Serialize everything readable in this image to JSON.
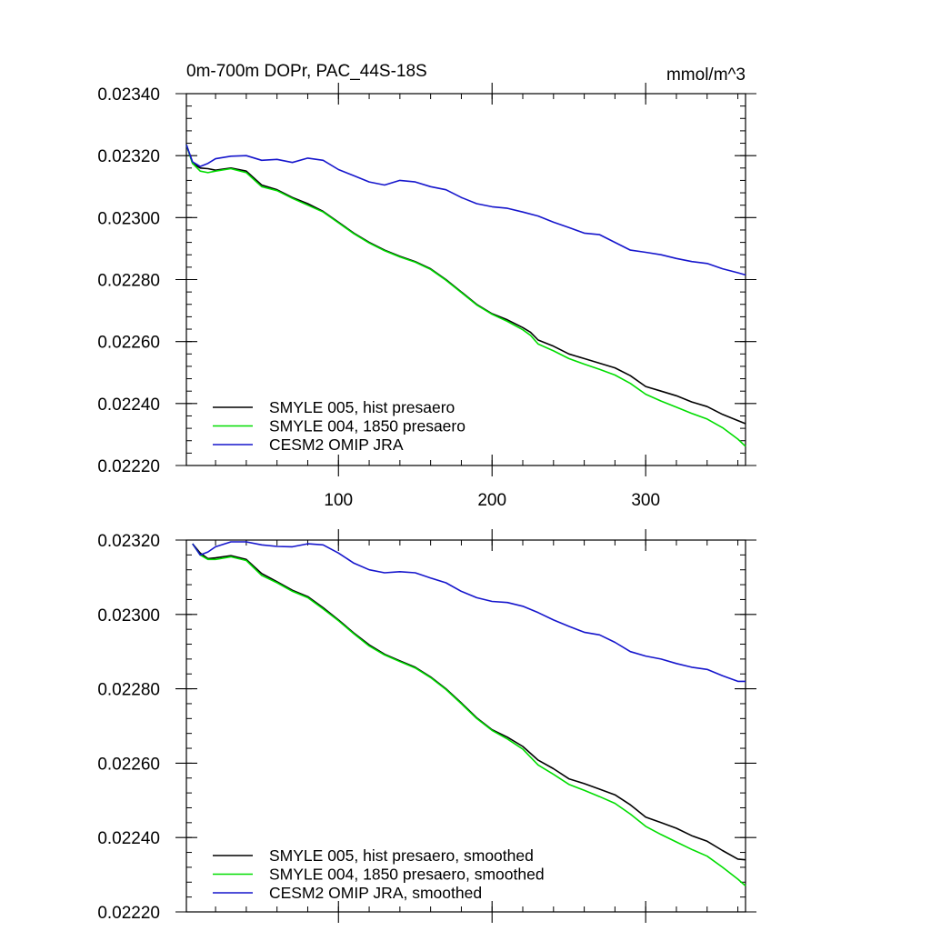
{
  "chart_data": [
    {
      "type": "line",
      "title": "0m-700m DOPr, PAC_44S-18S",
      "units": "mmol/m^3",
      "xlim": [
        1,
        365
      ],
      "ylim": [
        0.0222,
        0.0234
      ],
      "x_ticks": [
        100,
        200,
        300
      ],
      "x_tick_labels": [
        "100",
        "200",
        "300"
      ],
      "y_ticks": [
        0.0222,
        0.0224,
        0.0226,
        0.0228,
        0.023,
        0.0232,
        0.0234
      ],
      "y_tick_labels": [
        "0.02220",
        "0.02240",
        "0.02260",
        "0.02280",
        "0.02300",
        "0.02320",
        "0.02340"
      ],
      "grid": false,
      "legend_position": "bottom-left",
      "series": [
        {
          "name": "SMYLE 005, hist presaero",
          "color": "#000000",
          "points": [
            [
              1,
              0.023235
            ],
            [
              5,
              0.023175
            ],
            [
              10,
              0.02316
            ],
            [
              15,
              0.023158
            ],
            [
              20,
              0.023153
            ],
            [
              30,
              0.02316
            ],
            [
              40,
              0.02315
            ],
            [
              50,
              0.023105
            ],
            [
              60,
              0.02309
            ],
            [
              70,
              0.023065
            ],
            [
              80,
              0.023045
            ],
            [
              90,
              0.02302
            ],
            [
              100,
              0.022985
            ],
            [
              110,
              0.02295
            ],
            [
              120,
              0.02292
            ],
            [
              130,
              0.022895
            ],
            [
              140,
              0.022875
            ],
            [
              150,
              0.022858
            ],
            [
              160,
              0.022835
            ],
            [
              170,
              0.0228
            ],
            [
              180,
              0.02276
            ],
            [
              190,
              0.02272
            ],
            [
              200,
              0.02269
            ],
            [
              210,
              0.02267
            ],
            [
              220,
              0.022645
            ],
            [
              225,
              0.02263
            ],
            [
              230,
              0.022605
            ],
            [
              240,
              0.022585
            ],
            [
              250,
              0.02256
            ],
            [
              260,
              0.022545
            ],
            [
              270,
              0.02253
            ],
            [
              280,
              0.022515
            ],
            [
              290,
              0.02249
            ],
            [
              300,
              0.022455
            ],
            [
              310,
              0.02244
            ],
            [
              320,
              0.022425
            ],
            [
              330,
              0.022405
            ],
            [
              340,
              0.02239
            ],
            [
              350,
              0.022365
            ],
            [
              360,
              0.022345
            ],
            [
              365,
              0.022335
            ]
          ]
        },
        {
          "name": "SMYLE 004, 1850 presaero",
          "color": "#00dd00",
          "points": [
            [
              1,
              0.023235
            ],
            [
              5,
              0.023175
            ],
            [
              10,
              0.02315
            ],
            [
              15,
              0.023145
            ],
            [
              20,
              0.02315
            ],
            [
              30,
              0.023158
            ],
            [
              40,
              0.023145
            ],
            [
              50,
              0.0231
            ],
            [
              60,
              0.023087
            ],
            [
              70,
              0.023062
            ],
            [
              80,
              0.02304
            ],
            [
              90,
              0.023018
            ],
            [
              100,
              0.022983
            ],
            [
              110,
              0.022948
            ],
            [
              120,
              0.022918
            ],
            [
              130,
              0.022893
            ],
            [
              140,
              0.022873
            ],
            [
              150,
              0.022856
            ],
            [
              160,
              0.022833
            ],
            [
              170,
              0.022798
            ],
            [
              180,
              0.022758
            ],
            [
              190,
              0.022718
            ],
            [
              200,
              0.022688
            ],
            [
              210,
              0.022665
            ],
            [
              220,
              0.022638
            ],
            [
              225,
              0.02262
            ],
            [
              230,
              0.022592
            ],
            [
              240,
              0.02257
            ],
            [
              250,
              0.022545
            ],
            [
              260,
              0.022527
            ],
            [
              270,
              0.02251
            ],
            [
              280,
              0.022492
            ],
            [
              290,
              0.022465
            ],
            [
              300,
              0.02243
            ],
            [
              310,
              0.022408
            ],
            [
              320,
              0.022388
            ],
            [
              330,
              0.022368
            ],
            [
              340,
              0.02235
            ],
            [
              350,
              0.022322
            ],
            [
              360,
              0.022285
            ],
            [
              365,
              0.022262
            ]
          ]
        },
        {
          "name": "CESM2 OMIP JRA",
          "color": "#1515cc",
          "points": [
            [
              1,
              0.023235
            ],
            [
              5,
              0.02318
            ],
            [
              10,
              0.023165
            ],
            [
              15,
              0.023175
            ],
            [
              20,
              0.02319
            ],
            [
              30,
              0.023198
            ],
            [
              40,
              0.0232
            ],
            [
              50,
              0.023185
            ],
            [
              60,
              0.023188
            ],
            [
              70,
              0.023178
            ],
            [
              80,
              0.023192
            ],
            [
              90,
              0.023185
            ],
            [
              100,
              0.023155
            ],
            [
              110,
              0.023135
            ],
            [
              120,
              0.023115
            ],
            [
              130,
              0.023105
            ],
            [
              140,
              0.02312
            ],
            [
              150,
              0.023115
            ],
            [
              160,
              0.0231
            ],
            [
              170,
              0.02309
            ],
            [
              180,
              0.023065
            ],
            [
              190,
              0.023045
            ],
            [
              200,
              0.023035
            ],
            [
              210,
              0.02303
            ],
            [
              220,
              0.023018
            ],
            [
              230,
              0.023005
            ],
            [
              240,
              0.022985
            ],
            [
              250,
              0.022968
            ],
            [
              260,
              0.02295
            ],
            [
              270,
              0.022945
            ],
            [
              280,
              0.02292
            ],
            [
              290,
              0.022895
            ],
            [
              300,
              0.022888
            ],
            [
              310,
              0.02288
            ],
            [
              320,
              0.022868
            ],
            [
              330,
              0.022858
            ],
            [
              340,
              0.022852
            ],
            [
              350,
              0.022835
            ],
            [
              360,
              0.022822
            ],
            [
              365,
              0.022815
            ]
          ]
        }
      ]
    },
    {
      "type": "line",
      "title": "",
      "xlim": [
        1,
        365
      ],
      "ylim": [
        0.0222,
        0.0232
      ],
      "x_ticks": [
        100,
        200,
        300
      ],
      "y_ticks": [
        0.0222,
        0.0224,
        0.0226,
        0.0228,
        0.023,
        0.0232
      ],
      "y_tick_labels": [
        "0.02220",
        "0.02240",
        "0.02260",
        "0.02280",
        "0.02300",
        "0.02320"
      ],
      "grid": false,
      "legend_position": "bottom-left",
      "series": [
        {
          "name": "SMYLE 005, hist presaero, smoothed",
          "color": "#000000",
          "points": [
            [
              5,
              0.02319
            ],
            [
              10,
              0.023165
            ],
            [
              15,
              0.02315
            ],
            [
              20,
              0.023152
            ],
            [
              30,
              0.023158
            ],
            [
              40,
              0.023148
            ],
            [
              50,
              0.02311
            ],
            [
              60,
              0.023088
            ],
            [
              70,
              0.023065
            ],
            [
              80,
              0.023048
            ],
            [
              90,
              0.023018
            ],
            [
              100,
              0.022985
            ],
            [
              110,
              0.02295
            ],
            [
              120,
              0.022918
            ],
            [
              130,
              0.022893
            ],
            [
              140,
              0.022875
            ],
            [
              150,
              0.022858
            ],
            [
              160,
              0.022832
            ],
            [
              170,
              0.0228
            ],
            [
              180,
              0.022762
            ],
            [
              190,
              0.022722
            ],
            [
              200,
              0.02269
            ],
            [
              210,
              0.02267
            ],
            [
              220,
              0.022645
            ],
            [
              230,
              0.022608
            ],
            [
              240,
              0.022585
            ],
            [
              250,
              0.022558
            ],
            [
              260,
              0.022545
            ],
            [
              270,
              0.02253
            ],
            [
              280,
              0.022515
            ],
            [
              290,
              0.022488
            ],
            [
              300,
              0.022455
            ],
            [
              310,
              0.02244
            ],
            [
              320,
              0.022425
            ],
            [
              330,
              0.022405
            ],
            [
              340,
              0.02239
            ],
            [
              350,
              0.022365
            ],
            [
              360,
              0.022342
            ],
            [
              365,
              0.02234
            ]
          ]
        },
        {
          "name": "SMYLE 004, 1850 presaero, smoothed",
          "color": "#00dd00",
          "points": [
            [
              5,
              0.02319
            ],
            [
              10,
              0.02316
            ],
            [
              15,
              0.023148
            ],
            [
              20,
              0.023148
            ],
            [
              30,
              0.023155
            ],
            [
              40,
              0.023145
            ],
            [
              50,
              0.023105
            ],
            [
              60,
              0.023085
            ],
            [
              70,
              0.023062
            ],
            [
              80,
              0.023045
            ],
            [
              90,
              0.023015
            ],
            [
              100,
              0.022983
            ],
            [
              110,
              0.022948
            ],
            [
              120,
              0.022915
            ],
            [
              130,
              0.022891
            ],
            [
              140,
              0.022873
            ],
            [
              150,
              0.022856
            ],
            [
              160,
              0.02283
            ],
            [
              170,
              0.022798
            ],
            [
              180,
              0.02276
            ],
            [
              190,
              0.02272
            ],
            [
              200,
              0.022688
            ],
            [
              210,
              0.022665
            ],
            [
              220,
              0.022638
            ],
            [
              230,
              0.022595
            ],
            [
              240,
              0.02257
            ],
            [
              250,
              0.022543
            ],
            [
              260,
              0.022527
            ],
            [
              270,
              0.02251
            ],
            [
              280,
              0.022492
            ],
            [
              290,
              0.022463
            ],
            [
              300,
              0.02243
            ],
            [
              310,
              0.022408
            ],
            [
              320,
              0.022388
            ],
            [
              330,
              0.022368
            ],
            [
              340,
              0.02235
            ],
            [
              350,
              0.02232
            ],
            [
              360,
              0.022288
            ],
            [
              365,
              0.02227
            ]
          ]
        },
        {
          "name": "CESM2 OMIP JRA, smoothed",
          "color": "#1515cc",
          "points": [
            [
              5,
              0.02319
            ],
            [
              10,
              0.02316
            ],
            [
              15,
              0.023168
            ],
            [
              20,
              0.023182
            ],
            [
              30,
              0.023195
            ],
            [
              40,
              0.023195
            ],
            [
              50,
              0.023187
            ],
            [
              60,
              0.023183
            ],
            [
              70,
              0.023182
            ],
            [
              80,
              0.02319
            ],
            [
              90,
              0.023187
            ],
            [
              100,
              0.023165
            ],
            [
              110,
              0.023138
            ],
            [
              120,
              0.02312
            ],
            [
              130,
              0.023112
            ],
            [
              140,
              0.023115
            ],
            [
              150,
              0.023112
            ],
            [
              160,
              0.023098
            ],
            [
              170,
              0.023085
            ],
            [
              180,
              0.023062
            ],
            [
              190,
              0.023045
            ],
            [
              200,
              0.023035
            ],
            [
              210,
              0.023032
            ],
            [
              220,
              0.023022
            ],
            [
              230,
              0.023005
            ],
            [
              240,
              0.022985
            ],
            [
              250,
              0.022968
            ],
            [
              260,
              0.022952
            ],
            [
              270,
              0.022945
            ],
            [
              280,
              0.022925
            ],
            [
              290,
              0.0229
            ],
            [
              300,
              0.022888
            ],
            [
              310,
              0.02288
            ],
            [
              320,
              0.022868
            ],
            [
              330,
              0.022858
            ],
            [
              340,
              0.022852
            ],
            [
              350,
              0.022835
            ],
            [
              360,
              0.02282
            ],
            [
              365,
              0.02282
            ]
          ]
        }
      ]
    }
  ]
}
